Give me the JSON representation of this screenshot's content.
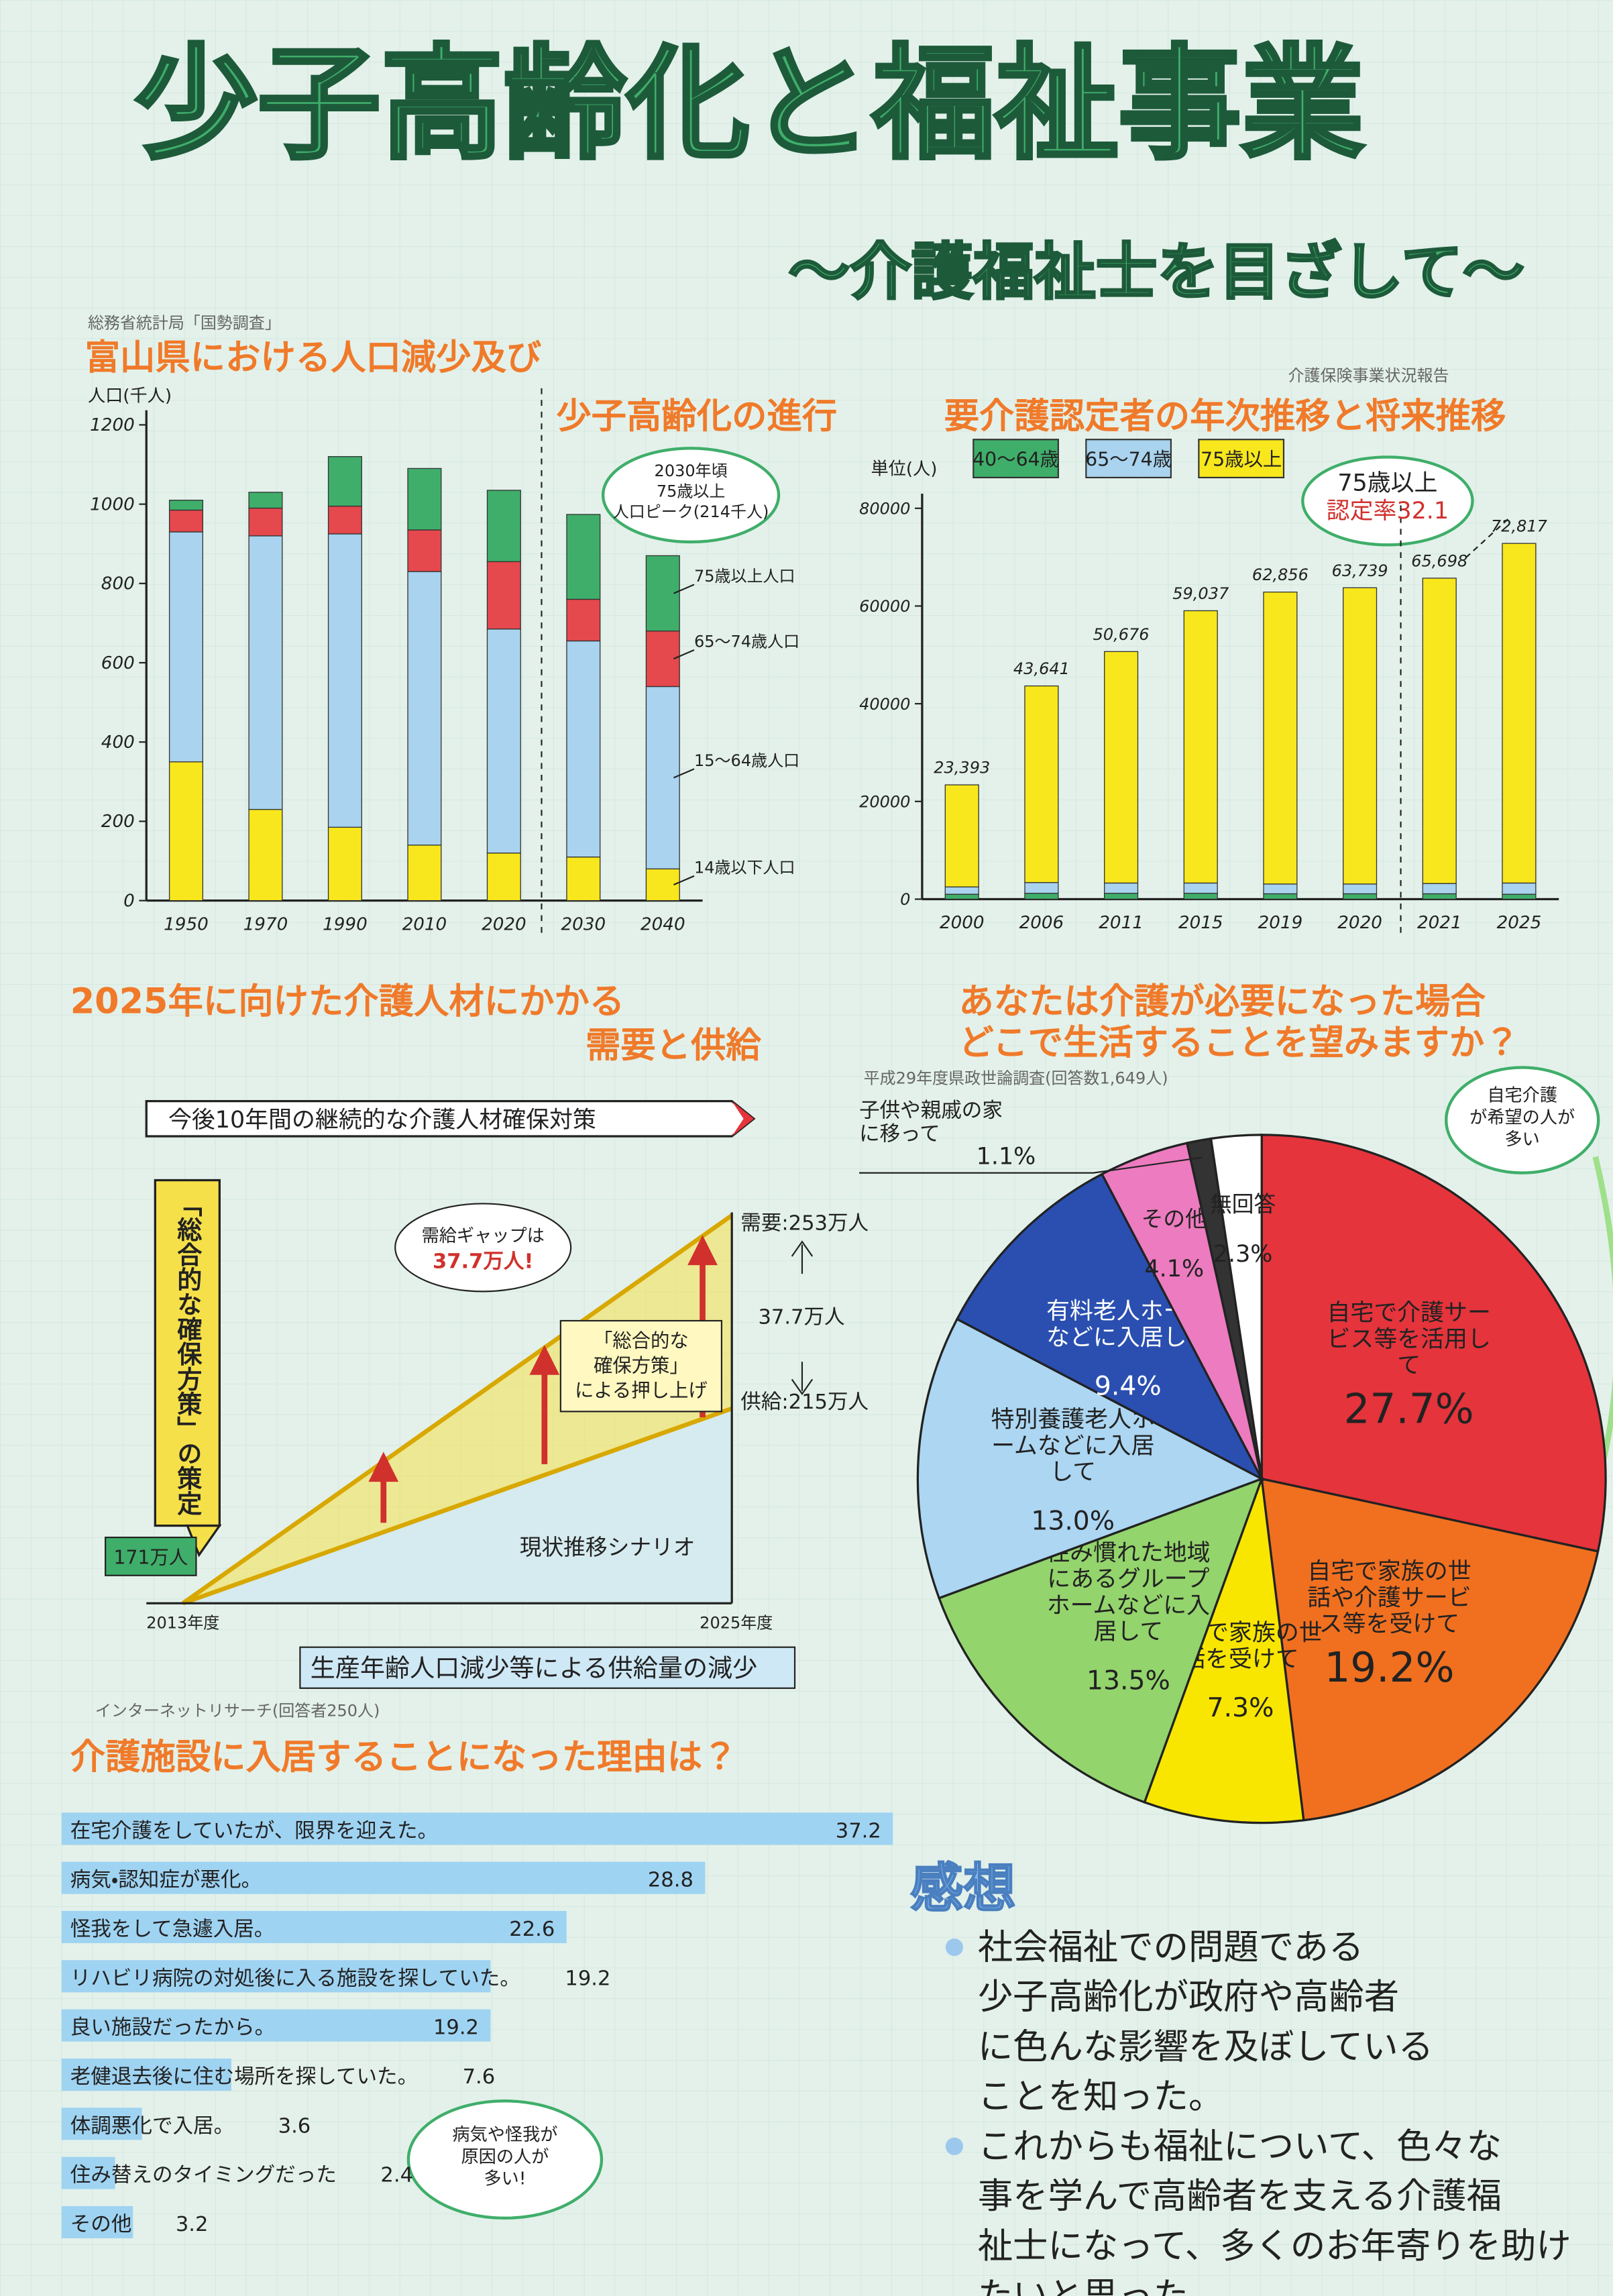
{
  "title": "少子高齢化と福祉事業",
  "subtitle": "〜介護福祉士を目ざして〜",
  "chart_data": [
    {
      "type": "bar",
      "source": "総務省統計局「国勢調査」",
      "title": [
        "富山県における人口減少及び",
        "少子高齢化の進行"
      ],
      "ylabel": "人口(千人)",
      "categories": [
        "1950",
        "1970",
        "1990",
        "2010",
        "2020",
        "2030",
        "2040"
      ],
      "series": [
        {
          "name": "14歳以下人口",
          "color": "#f8e71c",
          "values": [
            350,
            230,
            185,
            140,
            120,
            110,
            80
          ]
        },
        {
          "name": "15〜64歳人口",
          "color": "#a9d3ee",
          "values": [
            580,
            690,
            740,
            690,
            565,
            545,
            460
          ]
        },
        {
          "name": "65〜74歳人口",
          "color": "#e5484d",
          "values": [
            55,
            70,
            70,
            105,
            170,
            105,
            140
          ]
        },
        {
          "name": "75歳以上人口",
          "color": "#3fae6a",
          "values": [
            25,
            40,
            125,
            155,
            180,
            214,
            190
          ]
        }
      ],
      "ylim": [
        0,
        1200
      ],
      "yticks": [
        0,
        200,
        400,
        600,
        800,
        1000,
        1200
      ],
      "legend": "right",
      "annotation": [
        "2030年頃",
        "75歳以上",
        "人口ピーク(214千人)"
      ]
    },
    {
      "type": "bar",
      "source": "介護保険事業状況報告",
      "title": [
        "要介護認定者の年次推移と将来推移"
      ],
      "ylabel": "単位(人)",
      "categories": [
        "2000",
        "2006",
        "2011",
        "2015",
        "2019",
        "2020",
        "2021",
        "2025"
      ],
      "series": [
        {
          "name": "40〜64歳",
          "color": "#3fae6a",
          "values": [
            1000,
            1200,
            1200,
            1200,
            1100,
            1100,
            1100,
            1000
          ]
        },
        {
          "name": "65〜74歳",
          "color": "#a9d3ee",
          "values": [
            1500,
            2200,
            2100,
            2100,
            2000,
            2000,
            2100,
            2300
          ]
        },
        {
          "name": "75歳以上",
          "color": "#f8e71c",
          "values": [
            20893,
            40241,
            47376,
            55737,
            59756,
            60639,
            62498,
            69517
          ]
        }
      ],
      "total_labels": [
        "23,393",
        "43,641",
        "50,676",
        "59,037",
        "62,856",
        "63,739",
        "65,698",
        "72,817"
      ],
      "ylim": [
        0,
        80000
      ],
      "yticks": [
        0,
        20000,
        40000,
        60000,
        80000
      ],
      "legend": "top",
      "annotation": [
        "75歳以上",
        "認定率32.1"
      ]
    },
    {
      "type": "pie",
      "title": [
        "あなたは介護が必要になった場合",
        "どこで生活することを望みますか？"
      ],
      "source": "平成29年度県政世論調査(回答数1,649人)",
      "categories": [
        "自宅で介護サービス等を活用して",
        "自宅で家族の世話や介護サービス等を受けて",
        "自宅で家族の世話を受けて",
        "住み慣れた地域にあるグループホームなどに入居して",
        "特別養護老人ホームなどに入居して",
        "有料老人ホームなどに入居して",
        "その他",
        "子供や親戚の家に移って",
        "無回答"
      ],
      "values": [
        27.7,
        19.2,
        7.3,
        13.5,
        13,
        9.4,
        4.1,
        1.1,
        2.3
      ],
      "value_labels": [
        "27.7%",
        "19.2%",
        "7.3%",
        "13.5%",
        "13.0%",
        "9.4%",
        "4.1%",
        "1.1%",
        "2.3%"
      ],
      "colors": [
        "#e5343c",
        "#f07020",
        "#f8e600",
        "#93d46c",
        "#acd6f2",
        "#2a4fb0",
        "#ec7bbf",
        "#333333",
        "#ffffff"
      ],
      "annotation": [
        "自宅介護",
        "が希望の人が",
        "多い"
      ]
    },
    {
      "type": "barh",
      "title": "介護施設に入居することになった理由は？",
      "source": "インターネットリサーチ(回答者250人)",
      "categories": [
        "在宅介護をしていたが、限界を迎えた。",
        "病気・認知症が悪化。",
        "怪我をして急遽入居。",
        "リハビリ病院の対処後に入る施設を探していた。",
        "良い施設だったから。",
        "老健退去後に住む場所を探していた。",
        "体調悪化で入居。",
        "住み替えのタイミングだった",
        "その他"
      ],
      "values": [
        37.2,
        28.8,
        22.6,
        19.2,
        19.2,
        7.6,
        3.6,
        2.4,
        3.2
      ],
      "color": "#9fd3f2",
      "annotation": [
        "病気や怪我が",
        "原因の人が",
        "多い!"
      ]
    }
  ],
  "supply_demand": {
    "title": [
      "2025年に向けた介護人材にかかる",
      "需要と供給"
    ],
    "banner": "今後10年間の継続的な介護人材確保対策",
    "policy": "「総合的な確保方策」の策定",
    "gap_bubble": [
      "需給ギャップは",
      "37.7万人!"
    ],
    "boost": [
      "「総合的な",
      "確保方策」",
      "による押し上げ"
    ],
    "demand": "需要:253万人",
    "gap": "37.7万人",
    "supply": "供給:215万人",
    "start": "171万人",
    "scenario": "現状推移シナリオ",
    "start_year": "2013年度",
    "end_year": "2025年度",
    "decline": "生産年齢人口減少等による供給量の減少"
  },
  "impressions": {
    "heading": "感想",
    "paragraphs": [
      [
        "社会福祉での問題である",
        "少子高齢化が政府や高齢者",
        "に色んな影響を及ぼしている",
        "ことを知った。"
      ],
      [
        "これからも福祉について、色々な",
        "事を学んで高齢者を支える介護福",
        "祉士になって、多くのお年寄りを助け",
        "たいと思った。"
      ]
    ]
  }
}
